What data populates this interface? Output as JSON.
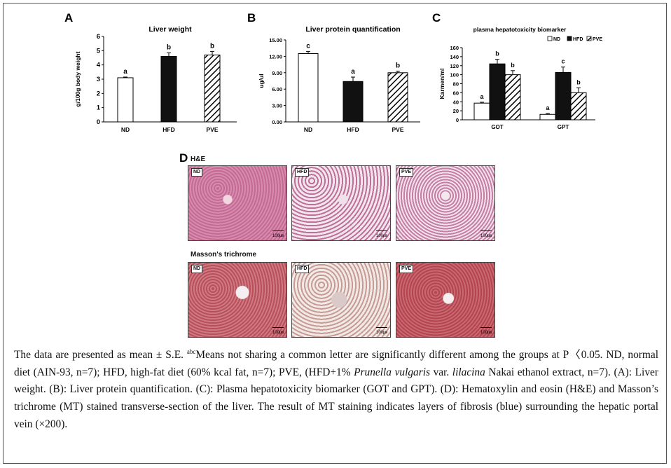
{
  "panels": {
    "A": {
      "letter": "A"
    },
    "B": {
      "letter": "B"
    },
    "C": {
      "letter": "C"
    },
    "D": {
      "letter": "D"
    }
  },
  "chart_data": [
    {
      "id": "A",
      "type": "bar",
      "title": "Liver weight",
      "xlabel": "",
      "ylabel": "g/100g body weight",
      "categories": [
        "ND",
        "HFD",
        "PVE"
      ],
      "values": [
        3.1,
        4.6,
        4.7
      ],
      "errors": [
        0.05,
        0.25,
        0.25
      ],
      "letters": [
        "a",
        "b",
        "b"
      ],
      "ylim": [
        0,
        6
      ],
      "yticks": [
        0,
        1,
        2,
        3,
        4,
        5,
        6
      ],
      "ytick_labels": [
        "0",
        "1",
        "2",
        "3",
        "4",
        "5",
        "6"
      ],
      "fills": [
        "white",
        "black",
        "hatch"
      ]
    },
    {
      "id": "B",
      "type": "bar",
      "title": "Liver protein quantification",
      "xlabel": "",
      "ylabel": "ug/ul",
      "categories": [
        "ND",
        "HFD",
        "PVE"
      ],
      "values": [
        12.5,
        7.4,
        9.0
      ],
      "errors": [
        0.4,
        0.8,
        0.3
      ],
      "letters": [
        "c",
        "a",
        "b"
      ],
      "ylim": [
        0,
        15
      ],
      "yticks": [
        0,
        3,
        6,
        9,
        12,
        15
      ],
      "ytick_labels": [
        "0.00",
        "3.00",
        "6.00",
        "9.00",
        "12.00",
        "15.00"
      ],
      "fills": [
        "white",
        "black",
        "hatch"
      ]
    },
    {
      "id": "C",
      "type": "bar",
      "title": "plasma hepatotoxicity biomarker",
      "xlabel": "",
      "ylabel": "Karmen/ml",
      "categories": [
        "GOT",
        "GPT"
      ],
      "series": [
        {
          "name": "ND",
          "values": [
            37,
            12
          ],
          "errors": [
            2,
            2
          ],
          "letters": [
            "a",
            "a"
          ],
          "fill": "white"
        },
        {
          "name": "HFD",
          "values": [
            124,
            105
          ],
          "errors": [
            10,
            12
          ],
          "letters": [
            "b",
            "c"
          ],
          "fill": "black"
        },
        {
          "name": "PVE",
          "values": [
            100,
            60
          ],
          "errors": [
            9,
            11
          ],
          "letters": [
            "b",
            "b"
          ],
          "fill": "hatch"
        }
      ],
      "ylim": [
        0,
        160
      ],
      "yticks": [
        0,
        20,
        40,
        60,
        80,
        100,
        120,
        140,
        160
      ],
      "ytick_labels": [
        "0",
        "20",
        "40",
        "60",
        "80",
        "100",
        "120",
        "140",
        "160"
      ],
      "legend_position": "top-right"
    }
  ],
  "histology": {
    "he_title": "H&E",
    "mt_title": "Masson's trichrome",
    "labels": [
      "ND",
      "HFD",
      "PVE"
    ],
    "scale_label": "100㎛"
  },
  "caption": {
    "p1": "The data are presented as mean ± S.E. ",
    "sup": "abc",
    "p2": "Means not sharing a common letter are significantly different among the groups at P〈0.05. ND, normal diet (AIN-93, n=7); HFD, high-fat diet (60% kcal fat, n=7); PVE, (HFD+1% ",
    "species": "Prunella vulgaris",
    "p3": " var. ",
    "variety": "lilacina",
    "p4": " Nakai ethanol extract, n=7). (A): Liver weight. (B): Liver protein quantification. (C): Plasma hepatotoxicity biomarker (GOT and GPT). (D): Hematoxylin and eosin (H&E) and Masson’s trichrome (MT) stained transverse-section of the liver. The result of MT staining indicates layers of fibrosis (blue) surrounding the hepatic portal vein (×200)."
  }
}
